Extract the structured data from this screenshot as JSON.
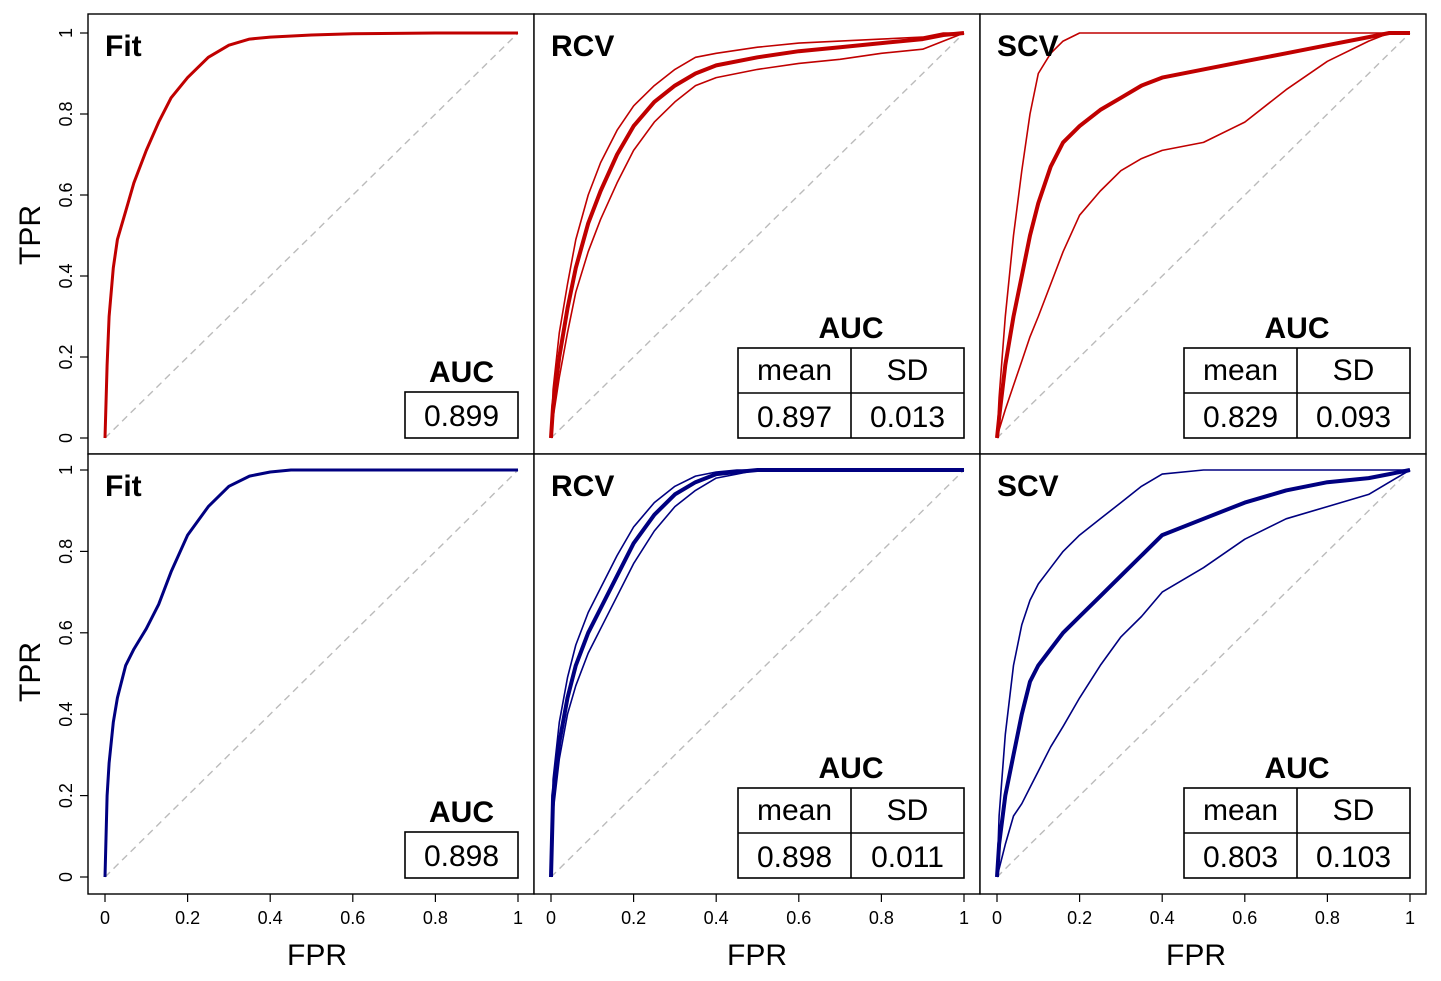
{
  "axes": {
    "ylabel": "TPR",
    "xlabel": "FPR",
    "x_ticks": [
      0,
      0.2,
      0.4,
      0.6,
      0.8,
      1
    ],
    "x_tick_labels": [
      "0",
      "0.2",
      "0.4",
      "0.6",
      "0.8",
      "1"
    ],
    "y_ticks": [
      0,
      0.2,
      0.4,
      0.6,
      0.8,
      1
    ],
    "y_tick_labels": [
      "0",
      "0.2",
      "0.4",
      "0.6",
      "0.8",
      "1"
    ]
  },
  "colors": {
    "red": "#c00000",
    "blue": "#000080",
    "diagonal": "#bbbbbb",
    "frame": "#000000"
  },
  "auc_table": {
    "title": "AUC",
    "mean_label": "mean",
    "sd_label": "SD"
  },
  "chart_data": [
    {
      "type": "line",
      "title": "Fit",
      "row": "top",
      "color": "red",
      "xlabel": "FPR",
      "ylabel": "TPR",
      "xlim": [
        0,
        1
      ],
      "ylim": [
        0,
        1
      ],
      "diagonal": true,
      "auc": {
        "value": "0.899"
      },
      "series": [
        {
          "name": "roc",
          "width": 3,
          "x": [
            0,
            0.005,
            0.01,
            0.02,
            0.03,
            0.05,
            0.07,
            0.1,
            0.13,
            0.16,
            0.2,
            0.25,
            0.3,
            0.35,
            0.4,
            0.5,
            0.6,
            0.8,
            1
          ],
          "y": [
            0,
            0.18,
            0.3,
            0.42,
            0.49,
            0.56,
            0.63,
            0.71,
            0.78,
            0.84,
            0.89,
            0.94,
            0.97,
            0.985,
            0.99,
            0.995,
            0.998,
            1,
            1
          ]
        }
      ]
    },
    {
      "type": "line",
      "title": "RCV",
      "row": "top",
      "color": "red",
      "xlabel": "FPR",
      "ylabel": "TPR",
      "xlim": [
        0,
        1
      ],
      "ylim": [
        0,
        1
      ],
      "diagonal": true,
      "auc": {
        "mean": "0.897",
        "sd": "0.013"
      },
      "series": [
        {
          "name": "mean",
          "width": 4,
          "x": [
            0,
            0.005,
            0.02,
            0.04,
            0.06,
            0.09,
            0.12,
            0.16,
            0.2,
            0.25,
            0.3,
            0.35,
            0.4,
            0.5,
            0.6,
            0.7,
            0.8,
            0.9,
            0.95,
            1
          ],
          "y": [
            0,
            0.08,
            0.2,
            0.32,
            0.42,
            0.53,
            0.61,
            0.7,
            0.77,
            0.83,
            0.87,
            0.9,
            0.92,
            0.94,
            0.955,
            0.965,
            0.975,
            0.985,
            0.995,
            1
          ]
        },
        {
          "name": "upper",
          "width": 1.6,
          "x": [
            0,
            0.005,
            0.02,
            0.04,
            0.06,
            0.09,
            0.12,
            0.16,
            0.2,
            0.25,
            0.3,
            0.35,
            0.4,
            0.5,
            0.6,
            0.7,
            0.8,
            0.9,
            0.95,
            1
          ],
          "y": [
            0,
            0.12,
            0.26,
            0.38,
            0.49,
            0.6,
            0.68,
            0.76,
            0.82,
            0.87,
            0.91,
            0.94,
            0.95,
            0.965,
            0.975,
            0.98,
            0.985,
            0.99,
            1,
            1
          ]
        },
        {
          "name": "lower",
          "width": 1.6,
          "x": [
            0,
            0.005,
            0.02,
            0.04,
            0.06,
            0.09,
            0.12,
            0.16,
            0.2,
            0.25,
            0.3,
            0.35,
            0.4,
            0.5,
            0.6,
            0.7,
            0.8,
            0.9,
            0.95,
            1
          ],
          "y": [
            0,
            0.05,
            0.15,
            0.26,
            0.36,
            0.46,
            0.54,
            0.63,
            0.71,
            0.78,
            0.83,
            0.87,
            0.89,
            0.91,
            0.925,
            0.935,
            0.95,
            0.96,
            0.98,
            1
          ]
        }
      ]
    },
    {
      "type": "line",
      "title": "SCV",
      "row": "top",
      "color": "red",
      "xlabel": "FPR",
      "ylabel": "TPR",
      "xlim": [
        0,
        1
      ],
      "ylim": [
        0,
        1
      ],
      "diagonal": true,
      "auc": {
        "mean": "0.829",
        "sd": "0.093"
      },
      "series": [
        {
          "name": "mean",
          "width": 4,
          "x": [
            0,
            0.005,
            0.02,
            0.04,
            0.06,
            0.08,
            0.1,
            0.13,
            0.16,
            0.2,
            0.25,
            0.3,
            0.35,
            0.4,
            0.5,
            0.6,
            0.7,
            0.8,
            0.9,
            0.95,
            1
          ],
          "y": [
            0,
            0.05,
            0.18,
            0.3,
            0.4,
            0.5,
            0.58,
            0.67,
            0.73,
            0.77,
            0.81,
            0.84,
            0.87,
            0.89,
            0.91,
            0.93,
            0.95,
            0.97,
            0.99,
            1,
            1
          ]
        },
        {
          "name": "upper",
          "width": 1.6,
          "x": [
            0,
            0.005,
            0.02,
            0.04,
            0.06,
            0.08,
            0.1,
            0.13,
            0.16,
            0.2,
            0.25,
            0.3,
            0.35,
            0.4,
            0.5,
            0.6,
            0.7,
            0.8,
            0.9,
            0.95,
            1
          ],
          "y": [
            0,
            0.1,
            0.3,
            0.5,
            0.66,
            0.8,
            0.9,
            0.95,
            0.98,
            1,
            1,
            1,
            1,
            1,
            1,
            1,
            1,
            1,
            1,
            1,
            1
          ]
        },
        {
          "name": "lower",
          "width": 1.6,
          "x": [
            0,
            0.005,
            0.02,
            0.04,
            0.06,
            0.08,
            0.1,
            0.13,
            0.16,
            0.2,
            0.25,
            0.3,
            0.35,
            0.4,
            0.5,
            0.6,
            0.7,
            0.8,
            0.9,
            0.95,
            1
          ],
          "y": [
            0,
            0.02,
            0.07,
            0.13,
            0.19,
            0.25,
            0.3,
            0.38,
            0.46,
            0.55,
            0.61,
            0.66,
            0.69,
            0.71,
            0.73,
            0.78,
            0.86,
            0.93,
            0.98,
            1,
            1
          ]
        }
      ]
    },
    {
      "type": "line",
      "title": "Fit",
      "row": "bottom",
      "color": "blue",
      "xlabel": "FPR",
      "ylabel": "TPR",
      "xlim": [
        0,
        1
      ],
      "ylim": [
        0,
        1
      ],
      "diagonal": true,
      "auc": {
        "value": "0.898"
      },
      "series": [
        {
          "name": "roc",
          "width": 3,
          "x": [
            0,
            0.005,
            0.01,
            0.02,
            0.03,
            0.05,
            0.07,
            0.1,
            0.13,
            0.16,
            0.2,
            0.25,
            0.3,
            0.35,
            0.4,
            0.45,
            0.6,
            0.8,
            1
          ],
          "y": [
            0,
            0.2,
            0.28,
            0.38,
            0.44,
            0.52,
            0.56,
            0.61,
            0.67,
            0.75,
            0.84,
            0.91,
            0.96,
            0.985,
            0.995,
            1,
            1,
            1,
            1
          ]
        }
      ]
    },
    {
      "type": "line",
      "title": "RCV",
      "row": "bottom",
      "color": "blue",
      "xlabel": "FPR",
      "ylabel": "TPR",
      "xlim": [
        0,
        1
      ],
      "ylim": [
        0,
        1
      ],
      "diagonal": true,
      "auc": {
        "mean": "0.898",
        "sd": "0.011"
      },
      "series": [
        {
          "name": "mean",
          "width": 4,
          "x": [
            0,
            0.005,
            0.02,
            0.04,
            0.06,
            0.09,
            0.12,
            0.16,
            0.2,
            0.25,
            0.3,
            0.35,
            0.4,
            0.45,
            0.5,
            0.6,
            0.8,
            1
          ],
          "y": [
            0,
            0.2,
            0.33,
            0.44,
            0.52,
            0.6,
            0.66,
            0.74,
            0.82,
            0.89,
            0.94,
            0.97,
            0.99,
            0.995,
            1,
            1,
            1,
            1
          ]
        },
        {
          "name": "upper",
          "width": 1.6,
          "x": [
            0,
            0.005,
            0.02,
            0.04,
            0.06,
            0.09,
            0.12,
            0.16,
            0.2,
            0.25,
            0.3,
            0.35,
            0.4,
            0.45,
            0.5,
            0.6,
            0.8,
            1
          ],
          "y": [
            0,
            0.24,
            0.38,
            0.49,
            0.57,
            0.65,
            0.71,
            0.79,
            0.86,
            0.92,
            0.96,
            0.985,
            0.995,
            1,
            1,
            1,
            1,
            1
          ]
        },
        {
          "name": "lower",
          "width": 1.6,
          "x": [
            0,
            0.005,
            0.02,
            0.04,
            0.06,
            0.09,
            0.12,
            0.16,
            0.2,
            0.25,
            0.3,
            0.35,
            0.4,
            0.45,
            0.5,
            0.6,
            0.8,
            1
          ],
          "y": [
            0,
            0.16,
            0.29,
            0.4,
            0.47,
            0.55,
            0.61,
            0.69,
            0.77,
            0.85,
            0.91,
            0.95,
            0.98,
            0.99,
            1,
            1,
            1,
            1
          ]
        }
      ]
    },
    {
      "type": "line",
      "title": "SCV",
      "row": "bottom",
      "color": "blue",
      "xlabel": "FPR",
      "ylabel": "TPR",
      "xlim": [
        0,
        1
      ],
      "ylim": [
        0,
        1
      ],
      "diagonal": true,
      "auc": {
        "mean": "0.803",
        "sd": "0.103"
      },
      "series": [
        {
          "name": "mean",
          "width": 4,
          "x": [
            0,
            0.005,
            0.02,
            0.04,
            0.06,
            0.08,
            0.1,
            0.13,
            0.16,
            0.2,
            0.25,
            0.3,
            0.35,
            0.4,
            0.5,
            0.6,
            0.7,
            0.8,
            0.9,
            0.95,
            1
          ],
          "y": [
            0,
            0.08,
            0.2,
            0.3,
            0.4,
            0.48,
            0.52,
            0.56,
            0.6,
            0.64,
            0.69,
            0.74,
            0.79,
            0.84,
            0.88,
            0.92,
            0.95,
            0.97,
            0.98,
            0.99,
            1
          ]
        },
        {
          "name": "upper",
          "width": 1.6,
          "x": [
            0,
            0.005,
            0.02,
            0.04,
            0.06,
            0.08,
            0.1,
            0.13,
            0.16,
            0.2,
            0.25,
            0.3,
            0.35,
            0.4,
            0.5,
            0.6,
            0.7,
            0.8,
            0.9,
            0.95,
            1
          ],
          "y": [
            0,
            0.15,
            0.35,
            0.52,
            0.62,
            0.68,
            0.72,
            0.76,
            0.8,
            0.84,
            0.88,
            0.92,
            0.96,
            0.99,
            1,
            1,
            1,
            1,
            1,
            1,
            1
          ]
        },
        {
          "name": "lower",
          "width": 1.6,
          "x": [
            0,
            0.005,
            0.02,
            0.04,
            0.06,
            0.08,
            0.1,
            0.13,
            0.16,
            0.2,
            0.25,
            0.3,
            0.35,
            0.4,
            0.5,
            0.6,
            0.7,
            0.8,
            0.9,
            0.95,
            1
          ],
          "y": [
            0,
            0.02,
            0.08,
            0.15,
            0.18,
            0.22,
            0.26,
            0.32,
            0.37,
            0.44,
            0.52,
            0.59,
            0.64,
            0.7,
            0.76,
            0.83,
            0.88,
            0.91,
            0.94,
            0.97,
            1
          ]
        }
      ]
    }
  ]
}
